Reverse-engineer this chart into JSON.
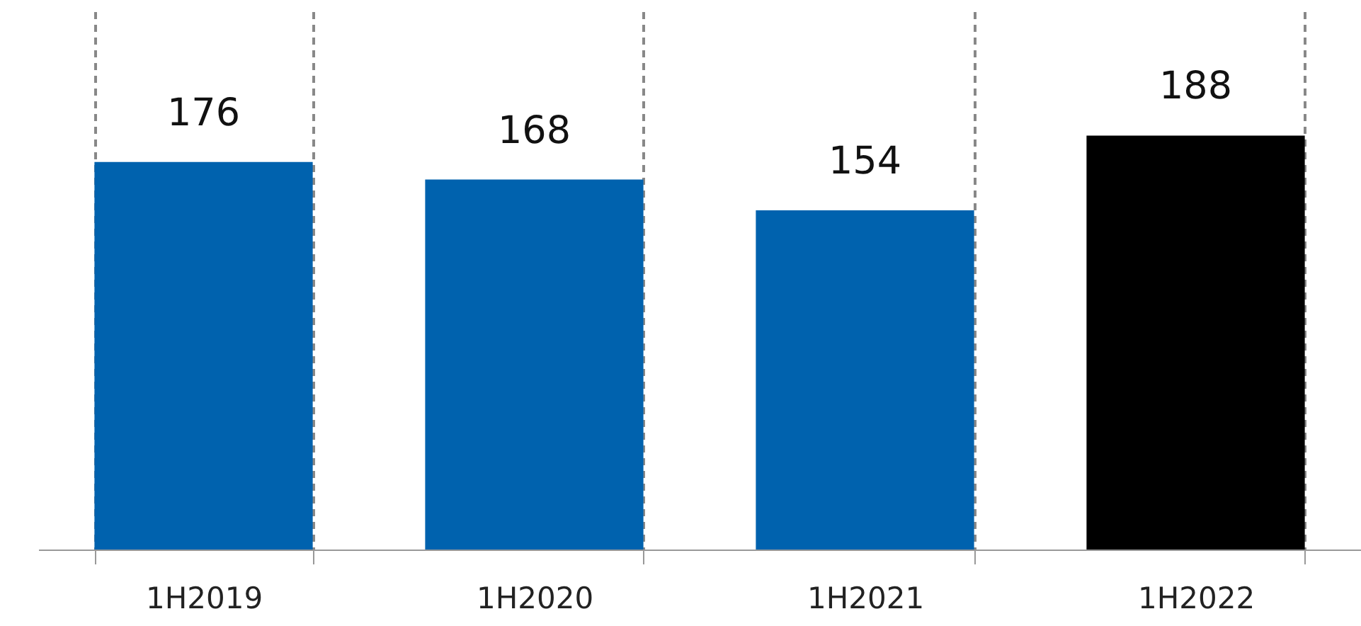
{
  "chart_data": {
    "type": "bar",
    "categories": [
      "1H2019",
      "1H2020",
      "1H2021",
      "1H2022"
    ],
    "values": [
      176,
      168,
      154,
      188
    ],
    "colors": [
      "#0062ae",
      "#0062ae",
      "#0062ae",
      "#000000"
    ],
    "data_labels": true,
    "grid": "x"
  }
}
